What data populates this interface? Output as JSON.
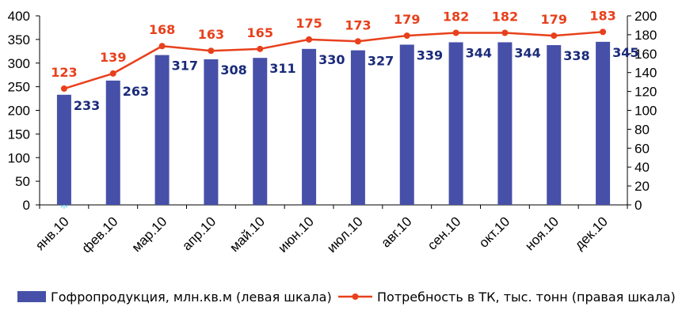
{
  "chart_data": {
    "type": "bar+line",
    "categories": [
      "янв.10",
      "фев.10",
      "мар.10",
      "апр.10",
      "май.10",
      "июн.10",
      "июл.10",
      "авг.10",
      "сен.10",
      "окт.10",
      "ноя.10",
      "дек.10"
    ],
    "series": [
      {
        "name": "Гофропродукция, млн.кв.м (левая шкала)",
        "type": "bar",
        "axis": "left",
        "color": "#4650A8",
        "label_color": "#1A2A7A",
        "values": [
          233,
          263,
          317,
          308,
          311,
          330,
          327,
          339,
          344,
          344,
          338,
          345
        ]
      },
      {
        "name": "Потребность в ТК, тыс. тонн (правая шкала)",
        "type": "line",
        "axis": "right",
        "color": "#E8401C",
        "label_color": "#E8401C",
        "values": [
          123,
          139,
          168,
          163,
          165,
          175,
          173,
          179,
          182,
          182,
          179,
          183
        ]
      }
    ],
    "y_left": {
      "min": 0,
      "max": 400,
      "step": 50
    },
    "y_right": {
      "min": 0,
      "max": 200,
      "step": 20
    },
    "grid": false,
    "legend": "bottom",
    "origin_marker": {
      "symbol": "✳",
      "color": "#30C8E8"
    }
  }
}
